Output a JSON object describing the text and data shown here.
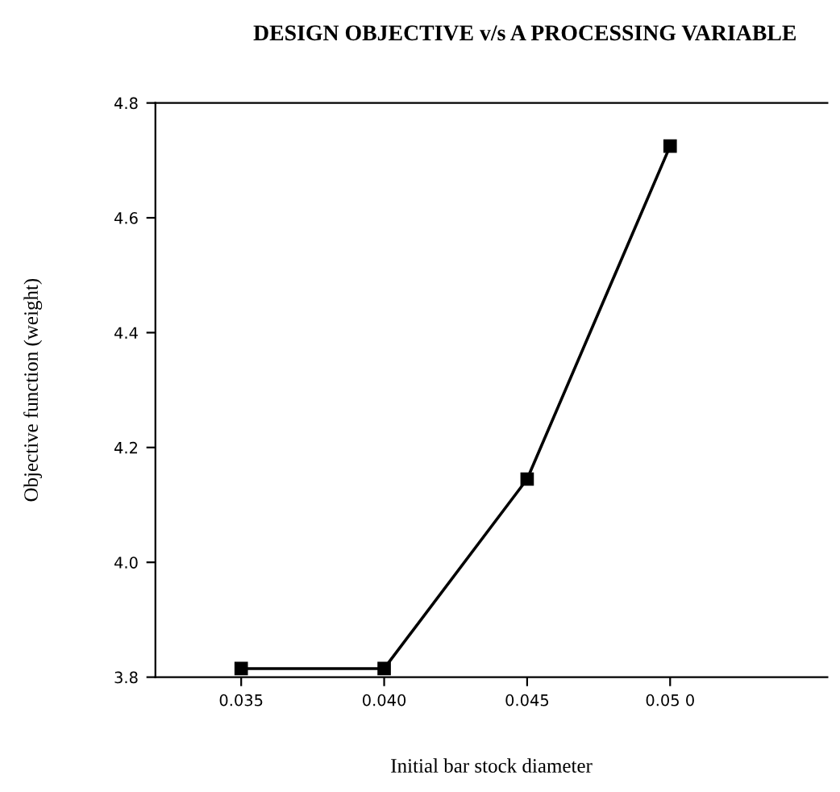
{
  "chart_data": {
    "type": "line",
    "title": "DESIGN OBJECTIVE v/s A PROCESSING VARIABLE",
    "xlabel": "Initial bar stock diameter",
    "ylabel": "Objective function (weight)",
    "x": [
      0.035,
      0.04,
      0.045,
      0.05
    ],
    "series": [
      {
        "color": "#000000",
        "values": [
          3.815,
          3.815,
          4.145,
          4.725
        ]
      }
    ],
    "xlim": [
      0.032,
      0.0555
    ],
    "xticks": [
      {
        "value": 0.035,
        "label": "0.035"
      },
      {
        "value": 0.04,
        "label": "0.040"
      },
      {
        "value": 0.045,
        "label": "0.045"
      },
      {
        "value": 0.05,
        "label": "0.05 0"
      }
    ],
    "ylim": [
      3.8,
      4.8
    ],
    "yticks": [
      {
        "value": 3.8,
        "label": "3.8"
      },
      {
        "value": 4.0,
        "label": "4.0"
      },
      {
        "value": 4.2,
        "label": "4.2"
      },
      {
        "value": 4.4,
        "label": "4.4"
      },
      {
        "value": 4.6,
        "label": "4.6"
      },
      {
        "value": 4.8,
        "label": "4.8"
      }
    ],
    "marker": "square",
    "line_style": "solid",
    "grid": false,
    "legend": false
  }
}
